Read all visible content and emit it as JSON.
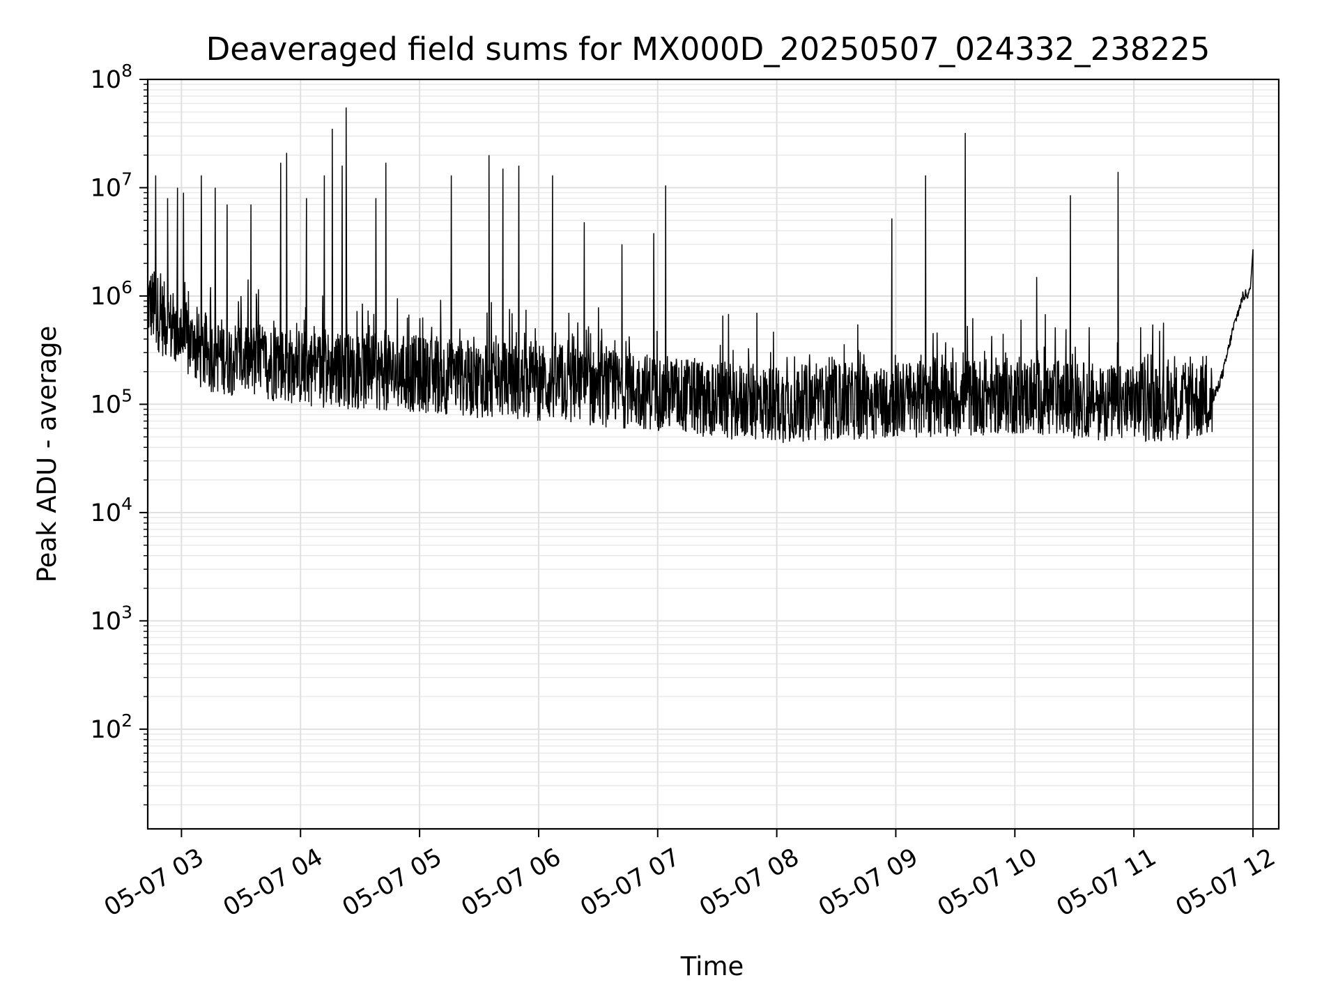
{
  "chart_data": {
    "type": "line",
    "title": "Deaveraged field sums for MX000D_20250507_024332_238225",
    "xlabel": "Time",
    "ylabel": "Peak ADU - average",
    "yscale": "log",
    "ylim": [
      12,
      100000000
    ],
    "xlim": [
      "2025-05-07 02:43",
      "2025-05-07 12:13"
    ],
    "grid": true,
    "x_ticks": [
      {
        "value": "2025-05-07 03:00",
        "label": "05-07 03"
      },
      {
        "value": "2025-05-07 04:00",
        "label": "05-07 04"
      },
      {
        "value": "2025-05-07 05:00",
        "label": "05-07 05"
      },
      {
        "value": "2025-05-07 06:00",
        "label": "05-07 06"
      },
      {
        "value": "2025-05-07 07:00",
        "label": "05-07 07"
      },
      {
        "value": "2025-05-07 08:00",
        "label": "05-07 08"
      },
      {
        "value": "2025-05-07 09:00",
        "label": "05-07 09"
      },
      {
        "value": "2025-05-07 10:00",
        "label": "05-07 10"
      },
      {
        "value": "2025-05-07 11:00",
        "label": "05-07 11"
      },
      {
        "value": "2025-05-07 12:00",
        "label": "05-07 12"
      }
    ],
    "y_ticks": [
      {
        "value": 100,
        "base": "10",
        "exp": "2"
      },
      {
        "value": 1000,
        "base": "10",
        "exp": "3"
      },
      {
        "value": 10000,
        "base": "10",
        "exp": "4"
      },
      {
        "value": 100000,
        "base": "10",
        "exp": "5"
      },
      {
        "value": 1000000,
        "base": "10",
        "exp": "6"
      },
      {
        "value": 10000000,
        "base": "10",
        "exp": "7"
      },
      {
        "value": 100000000,
        "base": "10",
        "exp": "8"
      }
    ],
    "series": [
      {
        "color": "#000000",
        "baseline": [
          {
            "x": "2025-05-07 02:43",
            "y": 900000
          },
          {
            "x": "2025-05-07 02:55",
            "y": 500000
          },
          {
            "x": "2025-05-07 03:10",
            "y": 300000
          },
          {
            "x": "2025-05-07 03:40",
            "y": 250000
          },
          {
            "x": "2025-05-07 04:00",
            "y": 220000
          },
          {
            "x": "2025-05-07 04:30",
            "y": 200000
          },
          {
            "x": "2025-05-07 05:00",
            "y": 190000
          },
          {
            "x": "2025-05-07 05:30",
            "y": 170000
          },
          {
            "x": "2025-05-07 06:00",
            "y": 160000
          },
          {
            "x": "2025-05-07 06:30",
            "y": 140000
          },
          {
            "x": "2025-05-07 07:00",
            "y": 130000
          },
          {
            "x": "2025-05-07 07:30",
            "y": 110000
          },
          {
            "x": "2025-05-07 08:00",
            "y": 100000
          },
          {
            "x": "2025-05-07 09:00",
            "y": 110000
          },
          {
            "x": "2025-05-07 10:00",
            "y": 120000
          },
          {
            "x": "2025-05-07 11:00",
            "y": 100000
          },
          {
            "x": "2025-05-07 11:40",
            "y": 110000
          },
          {
            "x": "2025-05-07 11:45",
            "y": 200000
          },
          {
            "x": "2025-05-07 11:50",
            "y": 500000
          },
          {
            "x": "2025-05-07 11:55",
            "y": 1000000
          },
          {
            "x": "2025-05-07 11:59",
            "y": 1100000
          },
          {
            "x": "2025-05-07 12:00",
            "y": 600000
          },
          {
            "x": "2025-05-07 12:00",
            "y": 12
          }
        ],
        "spikes": [
          {
            "x": "2025-05-07 02:47",
            "y": 13000000
          },
          {
            "x": "2025-05-07 02:53",
            "y": 8000000
          },
          {
            "x": "2025-05-07 02:58",
            "y": 10000000
          },
          {
            "x": "2025-05-07 03:01",
            "y": 9000000
          },
          {
            "x": "2025-05-07 03:10",
            "y": 13000000
          },
          {
            "x": "2025-05-07 03:17",
            "y": 10000000
          },
          {
            "x": "2025-05-07 03:23",
            "y": 7000000
          },
          {
            "x": "2025-05-07 03:35",
            "y": 7000000
          },
          {
            "x": "2025-05-07 03:50",
            "y": 17000000
          },
          {
            "x": "2025-05-07 03:53",
            "y": 21000000
          },
          {
            "x": "2025-05-07 04:03",
            "y": 8000000
          },
          {
            "x": "2025-05-07 04:12",
            "y": 13000000
          },
          {
            "x": "2025-05-07 04:16",
            "y": 35000000
          },
          {
            "x": "2025-05-07 04:21",
            "y": 16000000
          },
          {
            "x": "2025-05-07 04:23",
            "y": 55000000
          },
          {
            "x": "2025-05-07 04:38",
            "y": 8000000
          },
          {
            "x": "2025-05-07 04:43",
            "y": 17000000
          },
          {
            "x": "2025-05-07 05:16",
            "y": 13000000
          },
          {
            "x": "2025-05-07 05:35",
            "y": 20000000
          },
          {
            "x": "2025-05-07 05:42",
            "y": 15000000
          },
          {
            "x": "2025-05-07 05:50",
            "y": 16000000
          },
          {
            "x": "2025-05-07 06:07",
            "y": 13000000
          },
          {
            "x": "2025-05-07 06:23",
            "y": 4800000
          },
          {
            "x": "2025-05-07 06:42",
            "y": 3000000
          },
          {
            "x": "2025-05-07 06:58",
            "y": 3800000
          },
          {
            "x": "2025-05-07 07:04",
            "y": 10500000
          },
          {
            "x": "2025-05-07 07:50",
            "y": 700000
          },
          {
            "x": "2025-05-07 08:58",
            "y": 5200000
          },
          {
            "x": "2025-05-07 09:15",
            "y": 13000000
          },
          {
            "x": "2025-05-07 09:35",
            "y": 32000000
          },
          {
            "x": "2025-05-07 10:11",
            "y": 1500000
          },
          {
            "x": "2025-05-07 10:28",
            "y": 8500000
          },
          {
            "x": "2025-05-07 10:52",
            "y": 14000000
          },
          {
            "x": "2025-05-07 12:00",
            "y": 2700000
          }
        ]
      }
    ]
  }
}
